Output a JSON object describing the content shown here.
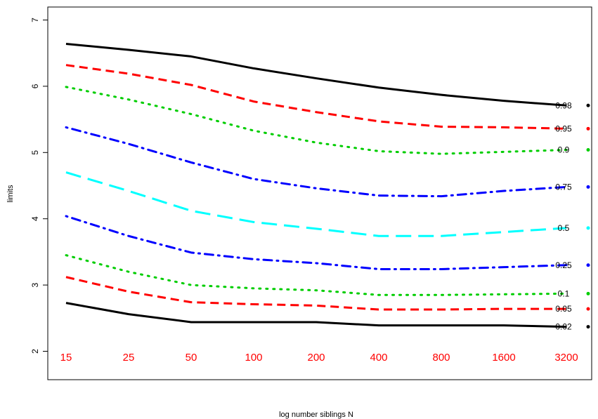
{
  "chart_data": {
    "type": "line",
    "title": "",
    "xlabel": "log number siblings N",
    "ylabel": "limits",
    "categories": [
      "15",
      "25",
      "50",
      "100",
      "200",
      "400",
      "800",
      "1600",
      "3200"
    ],
    "category_color": "#ff0000",
    "ylim": [
      1.85,
      7.35
    ],
    "yticks": [
      "2",
      "3",
      "4",
      "5",
      "6",
      "7"
    ],
    "grid": false,
    "series": [
      {
        "name": "0.98",
        "color": "#000000",
        "style": "solid",
        "values": [
          6.64,
          6.55,
          6.45,
          6.27,
          6.12,
          5.98,
          5.87,
          5.78,
          5.71
        ]
      },
      {
        "name": "0.95",
        "color": "#ff0000",
        "style": "dashed",
        "values": [
          6.32,
          6.19,
          6.02,
          5.77,
          5.61,
          5.47,
          5.39,
          5.38,
          5.36
        ]
      },
      {
        "name": "0.9",
        "color": "#00cd00",
        "style": "dotted",
        "values": [
          5.99,
          5.8,
          5.58,
          5.33,
          5.15,
          5.02,
          4.98,
          5.01,
          5.04
        ]
      },
      {
        "name": "0.75",
        "color": "#0000ff",
        "style": "dotdash",
        "values": [
          5.38,
          5.13,
          4.85,
          4.6,
          4.46,
          4.35,
          4.34,
          4.42,
          4.48
        ]
      },
      {
        "name": "0.5",
        "color": "#00ffff",
        "style": "longdash",
        "values": [
          4.7,
          4.42,
          4.12,
          3.95,
          3.85,
          3.74,
          3.74,
          3.8,
          3.86
        ]
      },
      {
        "name": "0.25",
        "color": "#0000ff",
        "style": "dotdash",
        "values": [
          4.04,
          3.74,
          3.49,
          3.39,
          3.33,
          3.24,
          3.24,
          3.27,
          3.3
        ]
      },
      {
        "name": "0.1",
        "color": "#00cd00",
        "style": "dotted",
        "values": [
          3.45,
          3.2,
          3.0,
          2.95,
          2.92,
          2.85,
          2.85,
          2.86,
          2.87
        ]
      },
      {
        "name": "0.05",
        "color": "#ff0000",
        "style": "dashed",
        "values": [
          3.12,
          2.9,
          2.74,
          2.71,
          2.69,
          2.63,
          2.63,
          2.64,
          2.64
        ]
      },
      {
        "name": "0.02",
        "color": "#000000",
        "style": "solid",
        "values": [
          2.73,
          2.56,
          2.44,
          2.44,
          2.44,
          2.39,
          2.39,
          2.39,
          2.37
        ]
      }
    ]
  }
}
